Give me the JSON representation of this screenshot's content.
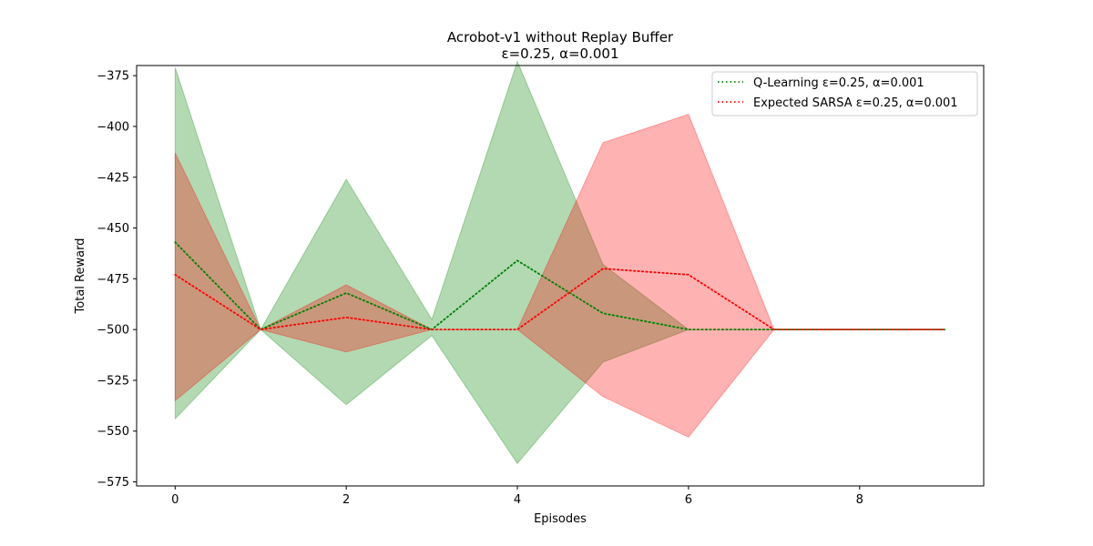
{
  "chart_data": {
    "type": "line",
    "title": "Acrobot-v1 without Replay Buffer",
    "subtitle": "ε=0.25, α=0.001",
    "xlabel": "Episodes",
    "ylabel": "Total Reward",
    "xlim": [
      -0.45,
      9.45
    ],
    "ylim": [
      -577,
      -370
    ],
    "xticks": [
      0,
      2,
      4,
      6,
      8
    ],
    "yticks": [
      -375,
      -400,
      -425,
      -450,
      -475,
      -500,
      -525,
      -550,
      -575
    ],
    "grid": false,
    "legend_position": "top-right",
    "x": [
      0,
      1,
      2,
      3,
      4,
      5,
      6,
      7,
      8,
      9
    ],
    "series": [
      {
        "name": "Q-Learning ε=0.25, α=0.001",
        "color": "#008000",
        "fill_color": "#008000",
        "mean": [
          -457,
          -500,
          -482,
          -500,
          -466,
          -492,
          -500,
          -500,
          -500,
          -500
        ],
        "upper": [
          -371,
          -500,
          -426,
          -495,
          -368,
          -468,
          -500,
          -500,
          -500,
          -500
        ],
        "lower": [
          -544,
          -500,
          -537,
          -503,
          -566,
          -516,
          -500,
          -500,
          -500,
          -500
        ]
      },
      {
        "name": "Expected SARSA ε=0.25, α=0.001",
        "color": "#ff0000",
        "fill_color": "#ff0000",
        "mean": [
          -473,
          -500,
          -494,
          -500,
          -500,
          -470,
          -473,
          -500,
          -500,
          -500
        ],
        "upper": [
          -413,
          -500,
          -478,
          -500,
          -500,
          -408,
          -394,
          -500,
          -500,
          -500
        ],
        "lower": [
          -535,
          -500,
          -511,
          -500,
          -500,
          -533,
          -553,
          -500,
          -500,
          -500
        ]
      }
    ]
  }
}
